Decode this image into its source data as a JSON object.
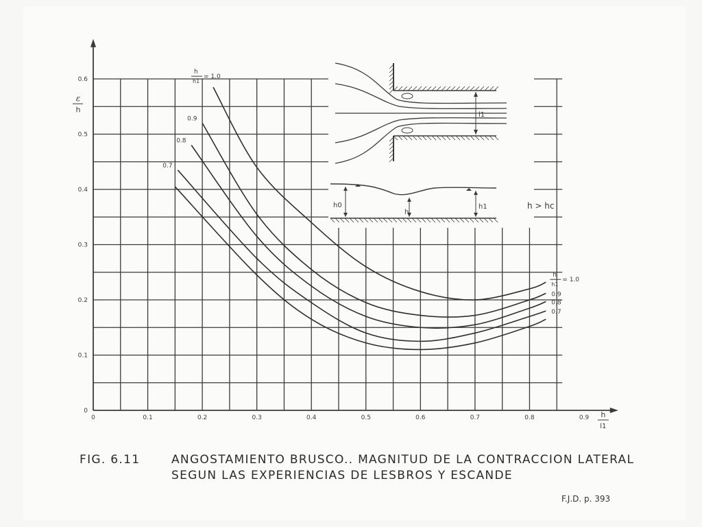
{
  "figure": {
    "number": "FIG. 6.11",
    "caption_line1": "ANGOSTAMIENTO BRUSCO.. MAGNITUD DE LA CONTRACCION LATERAL",
    "caption_line2": "SEGUN LAS EXPERIENCIAS DE LESBROS Y ESCANDE",
    "source": "F.J.D.  p. 393"
  },
  "chart_data": {
    "type": "line",
    "title": "",
    "xlabel": "h/l1",
    "ylabel": "ε/h",
    "xlim": [
      0,
      0.95
    ],
    "ylim": [
      0,
      0.65
    ],
    "x_ticks": [
      0,
      0.1,
      0.2,
      0.3,
      0.4,
      0.5,
      0.6,
      0.7,
      0.8,
      0.9
    ],
    "x_tick_labels": [
      "0",
      "0.1",
      "0.2",
      "0.3",
      "0.4",
      "0.5",
      "0.6",
      "0.7",
      "0.8",
      "0.9"
    ],
    "y_ticks": [
      0,
      0.1,
      0.2,
      0.3,
      0.4,
      0.5,
      0.6
    ],
    "y_tick_labels": [
      "0",
      "0.1",
      "0.2",
      "0.3",
      "0.4",
      "0.5",
      "0.6"
    ],
    "grid": true,
    "series_parameter": "h/h1",
    "series": [
      {
        "name": "1.0",
        "x": [
          0.22,
          0.3,
          0.4,
          0.5,
          0.6,
          0.7,
          0.8,
          0.83
        ],
        "values": [
          0.585,
          0.44,
          0.34,
          0.26,
          0.215,
          0.2,
          0.22,
          0.232
        ]
      },
      {
        "name": "0.9",
        "x": [
          0.2,
          0.3,
          0.4,
          0.5,
          0.6,
          0.7,
          0.8,
          0.83
        ],
        "values": [
          0.52,
          0.355,
          0.255,
          0.195,
          0.172,
          0.172,
          0.2,
          0.212
        ]
      },
      {
        "name": "0.8",
        "x": [
          0.18,
          0.3,
          0.4,
          0.5,
          0.6,
          0.7,
          0.8,
          0.83
        ],
        "values": [
          0.48,
          0.315,
          0.225,
          0.17,
          0.15,
          0.155,
          0.185,
          0.197
        ]
      },
      {
        "name": "0.7",
        "x": [
          0.155,
          0.3,
          0.4,
          0.5,
          0.6,
          0.7,
          0.8,
          0.83
        ],
        "values": [
          0.435,
          0.275,
          0.195,
          0.14,
          0.125,
          0.14,
          0.17,
          0.18
        ]
      },
      {
        "name": "",
        "x": [
          0.15,
          0.3,
          0.4,
          0.5,
          0.6,
          0.7,
          0.8,
          0.83
        ],
        "values": [
          0.405,
          0.245,
          0.165,
          0.122,
          0.11,
          0.122,
          0.152,
          0.165
        ]
      }
    ],
    "legend_top": {
      "ratio_num": "h",
      "ratio_den": "h1",
      "eq": "= 1.0"
    },
    "legend_right": {
      "ratio_num": "h",
      "ratio_den": "h1",
      "eq": "= 1.0"
    },
    "inset": {
      "label_h0": "h0",
      "label_h": "h",
      "label_h1": "h1",
      "label_l1": "l1",
      "condition": "h > hc"
    }
  }
}
